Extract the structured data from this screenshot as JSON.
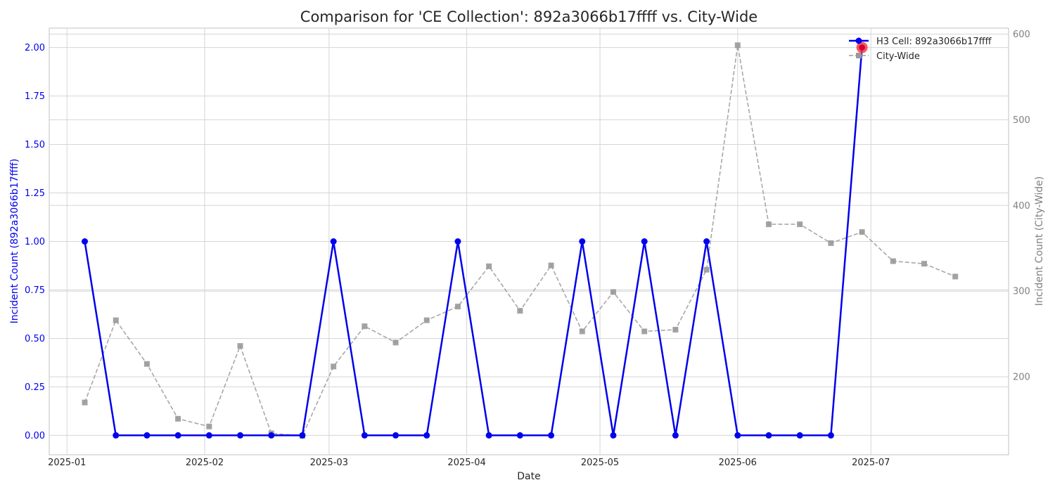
{
  "chart_data": {
    "type": "line",
    "title": "Comparison for 'CE Collection': 892a3066b17ffff vs. City-Wide",
    "xlabel": "Date",
    "ylabel_left": "Incident Count (892a3066b17ffff)",
    "ylabel_right": "Incident Count (City-Wide)",
    "xlim": [
      "2024-12-28",
      "2025-08-01"
    ],
    "ylim_left": [
      -0.1,
      2.1
    ],
    "ylim_right": [
      109,
      607
    ],
    "x_ticks": [
      "2025-01-01",
      "2025-02-01",
      "2025-03-01",
      "2025-04-01",
      "2025-05-01",
      "2025-06-01",
      "2025-07-01"
    ],
    "x_tick_labels": [
      "2025-01",
      "2025-02",
      "2025-03",
      "2025-04",
      "2025-05",
      "2025-06",
      "2025-07"
    ],
    "y_left_ticks": [
      0.0,
      0.25,
      0.5,
      0.75,
      1.0,
      1.25,
      1.5,
      1.75,
      2.0
    ],
    "y_left_tick_labels": [
      "0.00",
      "0.25",
      "0.50",
      "0.75",
      "1.00",
      "1.25",
      "1.50",
      "1.75",
      "2.00"
    ],
    "y_right_ticks": [
      200,
      300,
      400,
      500,
      600
    ],
    "y_right_tick_labels": [
      "200",
      "300",
      "400",
      "500",
      "600"
    ],
    "grid": true,
    "legend_position": "top-right",
    "series": [
      {
        "name": "H3 Cell: 892a3066b17ffff",
        "axis": "left",
        "color": "#0000ee",
        "style": "solid",
        "marker": "circle",
        "x": [
          "2025-01-05",
          "2025-01-12",
          "2025-01-19",
          "2025-01-26",
          "2025-02-02",
          "2025-02-09",
          "2025-02-16",
          "2025-02-23",
          "2025-03-02",
          "2025-03-09",
          "2025-03-16",
          "2025-03-23",
          "2025-03-30",
          "2025-04-06",
          "2025-04-13",
          "2025-04-20",
          "2025-04-27",
          "2025-05-04",
          "2025-05-11",
          "2025-05-18",
          "2025-05-25",
          "2025-06-01",
          "2025-06-08",
          "2025-06-15",
          "2025-06-22",
          "2025-06-29"
        ],
        "values": [
          1,
          0,
          0,
          0,
          0,
          0,
          0,
          0,
          1,
          0,
          0,
          0,
          1,
          0,
          0,
          0,
          1,
          0,
          1,
          0,
          1,
          0,
          0,
          0,
          0,
          2
        ]
      },
      {
        "name": "City-Wide",
        "axis": "right",
        "color": "#999999",
        "style": "dashed",
        "marker": "square",
        "x": [
          "2025-01-05",
          "2025-01-12",
          "2025-01-19",
          "2025-01-26",
          "2025-02-02",
          "2025-02-09",
          "2025-02-16",
          "2025-02-23",
          "2025-03-02",
          "2025-03-09",
          "2025-03-16",
          "2025-03-23",
          "2025-03-30",
          "2025-04-06",
          "2025-04-13",
          "2025-04-20",
          "2025-04-27",
          "2025-05-04",
          "2025-05-11",
          "2025-05-18",
          "2025-05-25",
          "2025-06-01",
          "2025-06-08",
          "2025-06-15",
          "2025-06-22",
          "2025-06-29",
          "2025-07-06",
          "2025-07-13",
          "2025-07-20"
        ],
        "values": [
          170,
          266,
          215,
          151,
          142,
          236,
          134,
          131,
          212,
          259,
          240,
          266,
          282,
          329,
          277,
          330,
          253,
          299,
          253,
          255,
          325,
          587,
          378,
          378,
          356,
          369,
          335,
          332,
          317
        ]
      }
    ],
    "highlight": {
      "series": 0,
      "x": "2025-06-29",
      "value": 2,
      "color": "#ff2d3a"
    }
  }
}
